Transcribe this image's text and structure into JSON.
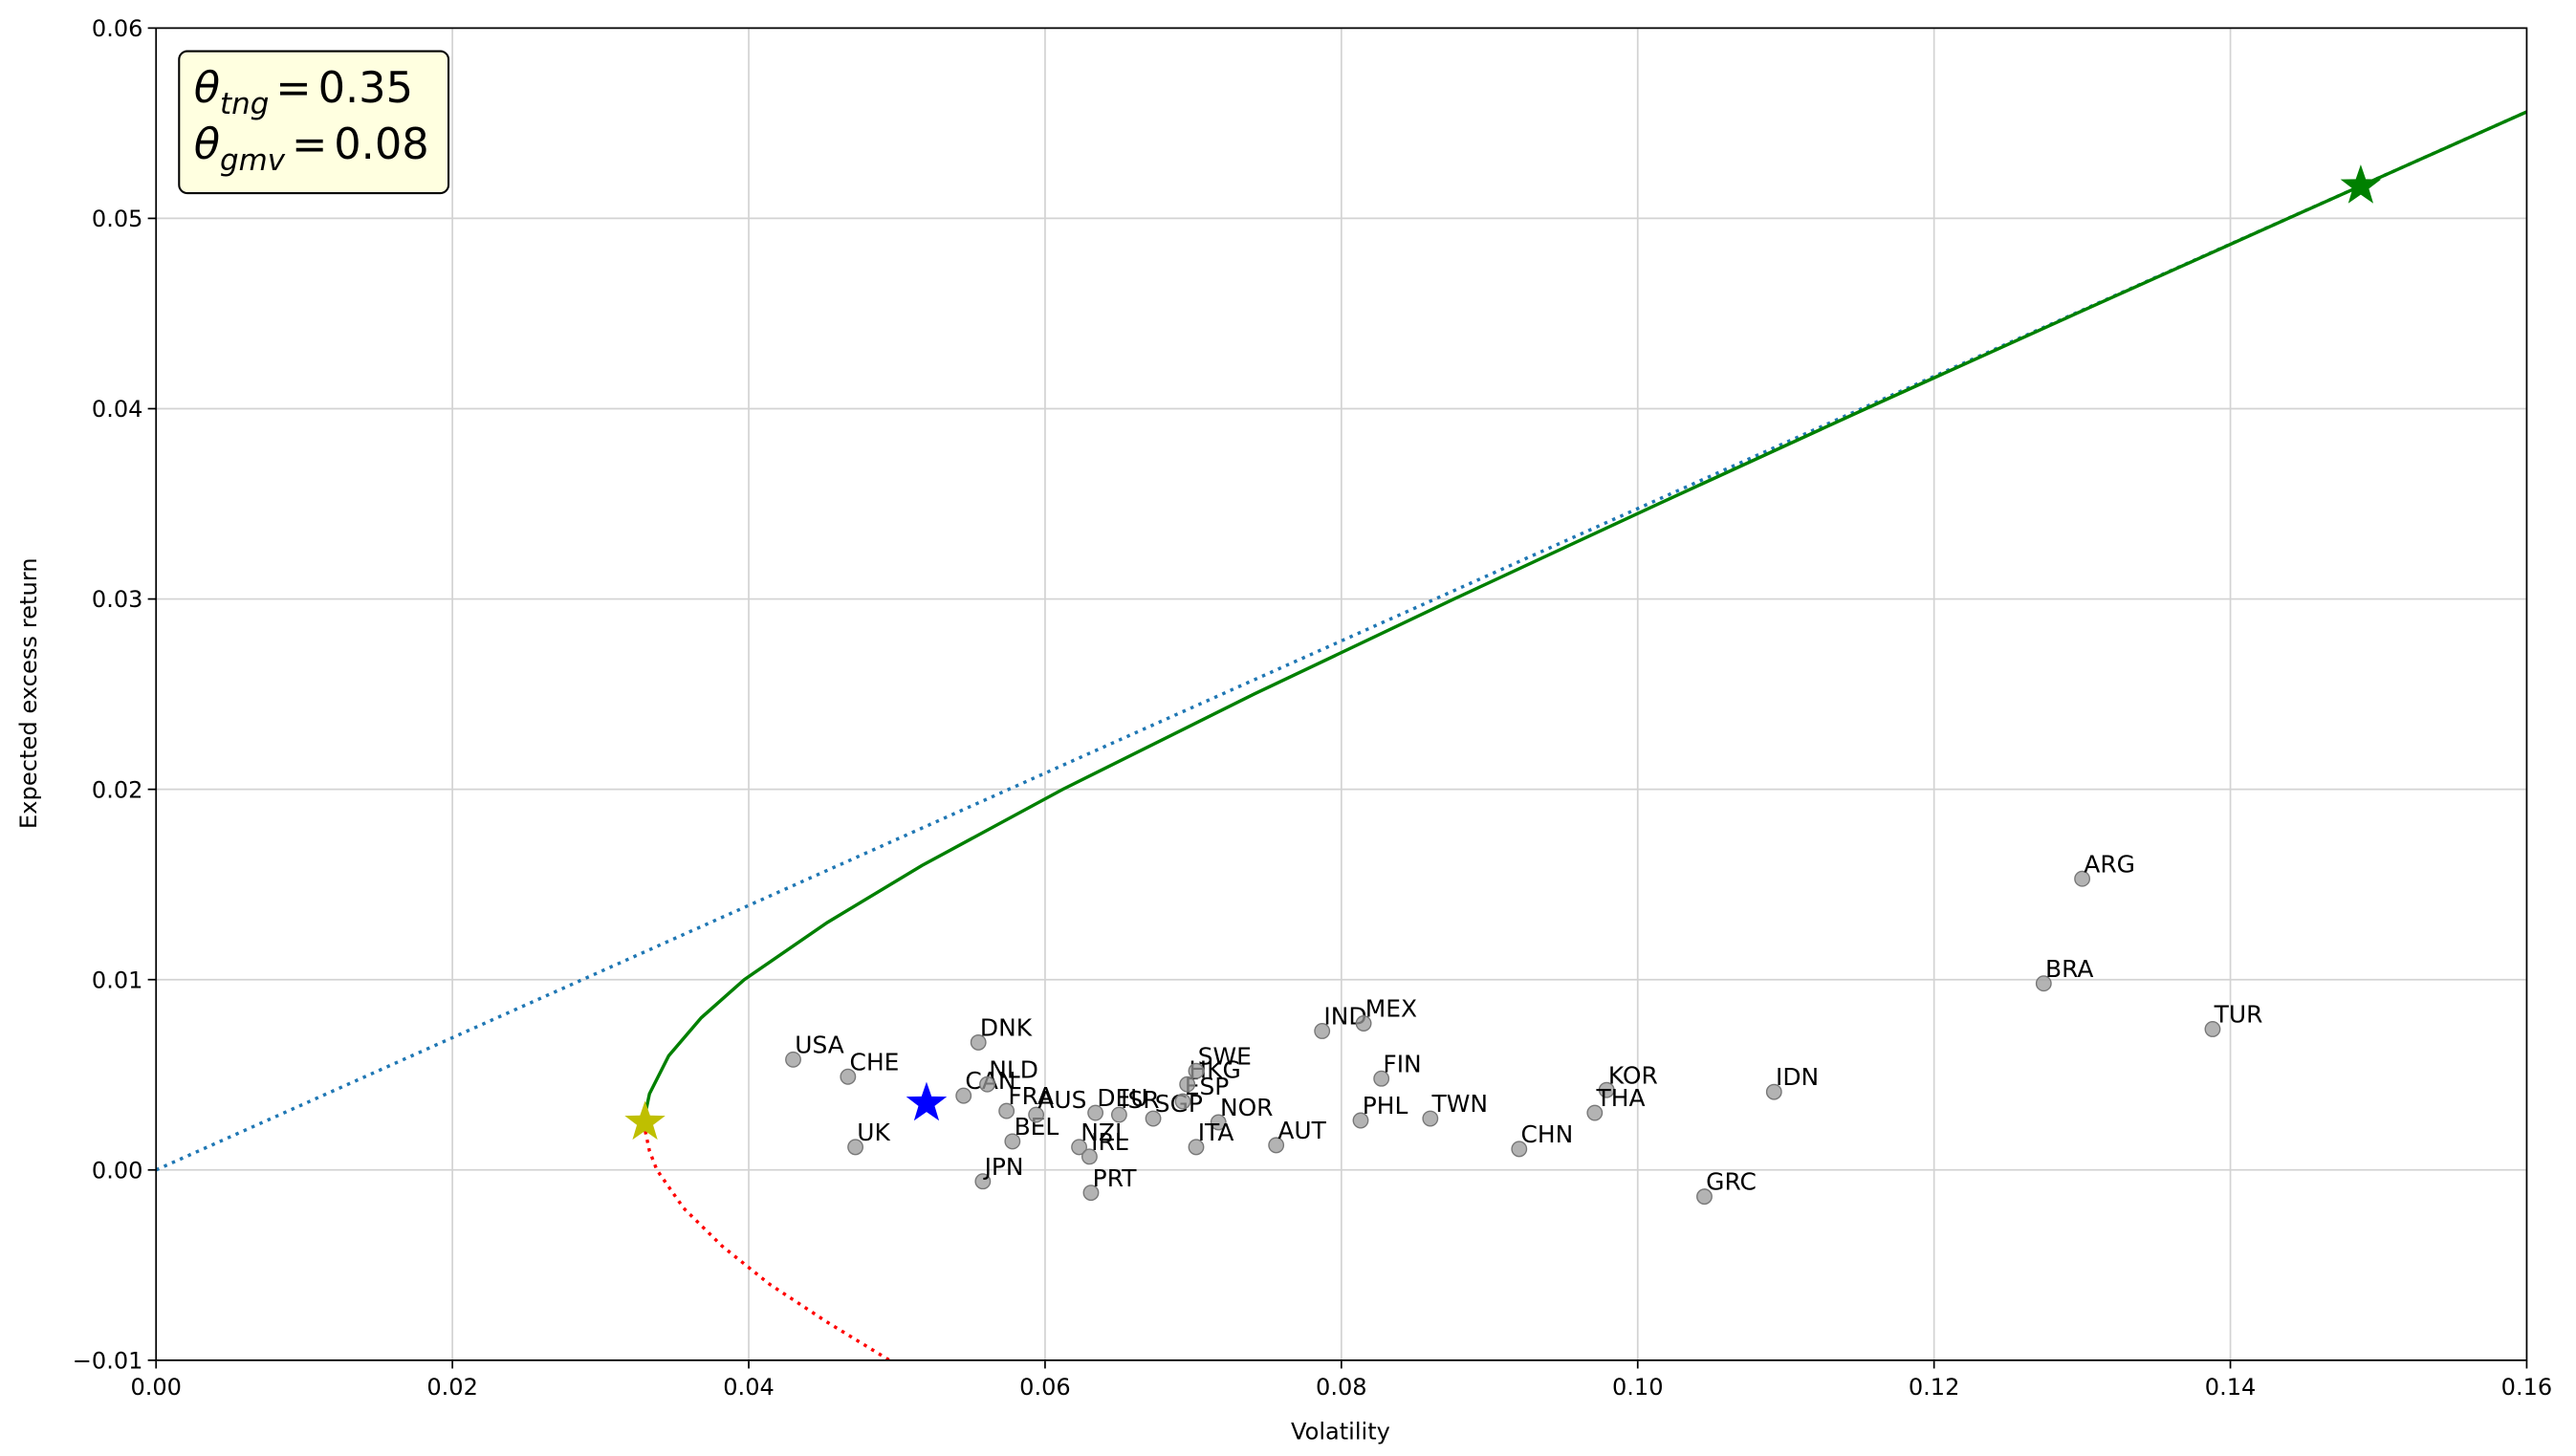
{
  "chart_data": {
    "type": "scatter",
    "x_label": "Volatility",
    "y_label": "Expected excess return",
    "xlim": [
      0,
      0.16
    ],
    "ylim": [
      -0.01,
      0.06
    ],
    "xticks": [
      {
        "value": 0,
        "label": "0.00"
      },
      {
        "value": 0.02,
        "label": "0.02"
      },
      {
        "value": 0.04,
        "label": "0.04"
      },
      {
        "value": 0.06,
        "label": "0.06"
      },
      {
        "value": 0.08,
        "label": "0.08"
      },
      {
        "value": 0.1,
        "label": "0.10"
      },
      {
        "value": 0.12,
        "label": "0.12"
      },
      {
        "value": 0.14,
        "label": "0.14"
      },
      {
        "value": 0.16,
        "label": "0.16"
      }
    ],
    "yticks": [
      {
        "value": -0.01,
        "label": "−0.01"
      },
      {
        "value": 0,
        "label": "0.00"
      },
      {
        "value": 0.01,
        "label": "0.01"
      },
      {
        "value": 0.02,
        "label": "0.02"
      },
      {
        "value": 0.03,
        "label": "0.03"
      },
      {
        "value": 0.04,
        "label": "0.04"
      },
      {
        "value": 0.05,
        "label": "0.05"
      },
      {
        "value": 0.06,
        "label": "0.06"
      }
    ],
    "grid": true,
    "annotations": [
      {
        "symbol": "θ",
        "subscript": "tng",
        "relation": "=",
        "value": 0.35
      },
      {
        "symbol": "θ",
        "subscript": "gmv",
        "relation": "=",
        "value": 0.08
      }
    ],
    "series": [
      {
        "kind": "line",
        "style": "dotted",
        "color": "#1f77b4",
        "x": [
          0,
          0.16
        ],
        "values": [
          0,
          0.0556
        ]
      },
      {
        "kind": "line",
        "style": "solid",
        "color": "#008000",
        "x": [
          0.033,
          0.03303,
          0.0333,
          0.0346,
          0.0368,
          0.0397,
          0.0453,
          0.0517,
          0.0612,
          0.0741,
          0.0876,
          0.1014,
          0.1154,
          0.1296,
          0.1439,
          0.16
        ],
        "values": [
          0.0025,
          0.003,
          0.004,
          0.006,
          0.008,
          0.01,
          0.013,
          0.016,
          0.02,
          0.025,
          0.03,
          0.035,
          0.04,
          0.045,
          0.05,
          0.0556
        ]
      },
      {
        "kind": "line",
        "style": "dotted",
        "color": "#ff0000",
        "x": [
          0.033,
          0.03303,
          0.0333,
          0.0338,
          0.0356,
          0.0382,
          0.0414,
          0.0453,
          0.0495
        ],
        "values": [
          0.0025,
          0.002,
          0.001,
          0,
          -0.002,
          -0.004,
          -0.006,
          -0.008,
          -0.01
        ]
      },
      {
        "kind": "points",
        "color": "#999999",
        "labels": [
          "USA",
          "CHE",
          "DNK",
          "UK",
          "JPN",
          "CAN",
          "NLD",
          "FRA",
          "BEL",
          "AUS",
          "DEU",
          "NZL",
          "IRL",
          "PRT",
          "ISR",
          "SGP",
          "ESP",
          "HKG",
          "SWE",
          "NOR",
          "ITA",
          "AUT",
          "IND",
          "MEX",
          "FIN",
          "PHL",
          "TWN",
          "CHN",
          "KOR",
          "THA",
          "IDN",
          "GRC",
          "ARG",
          "BRA",
          "TUR"
        ],
        "x": [
          0.043,
          0.0467,
          0.0555,
          0.0472,
          0.0558,
          0.0545,
          0.0561,
          0.0574,
          0.0578,
          0.0594,
          0.0634,
          0.0623,
          0.063,
          0.0631,
          0.065,
          0.0673,
          0.0693,
          0.0696,
          0.0702,
          0.0717,
          0.0702,
          0.0756,
          0.0787,
          0.0815,
          0.0827,
          0.0813,
          0.086,
          0.092,
          0.0979,
          0.0971,
          0.1092,
          0.1045,
          0.13,
          0.1274,
          0.1388
        ],
        "values": [
          0.0058,
          0.0049,
          0.0067,
          0.0012,
          -0.0006,
          0.0039,
          0.0045,
          0.0031,
          0.0015,
          0.0029,
          0.003,
          0.0012,
          0.0007,
          -0.0012,
          0.0029,
          0.0027,
          0.0036,
          0.0045,
          0.0052,
          0.0025,
          0.0012,
          0.0013,
          0.0073,
          0.0077,
          0.0048,
          0.0026,
          0.0027,
          0.0011,
          0.0042,
          0.003,
          0.0041,
          -0.0014,
          0.0153,
          0.0098,
          0.0074
        ]
      },
      {
        "kind": "star",
        "color": "#0000ff",
        "x": [
          0.052
        ],
        "values": [
          0.0035
        ]
      },
      {
        "kind": "star",
        "color": "#bfbf00",
        "x": [
          0.033
        ],
        "values": [
          0.0025
        ]
      },
      {
        "kind": "star",
        "color": "#008000",
        "x": [
          0.1488
        ],
        "values": [
          0.0517
        ]
      }
    ]
  }
}
